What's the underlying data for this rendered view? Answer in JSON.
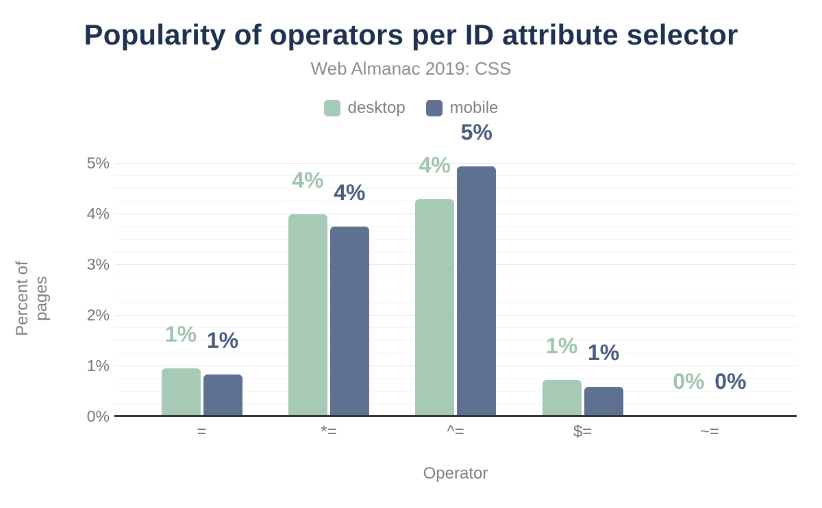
{
  "chart_data": {
    "type": "bar",
    "title": "Popularity of operators per ID attribute selector",
    "subtitle": "Web Almanac 2019: CSS",
    "categories": [
      "=",
      "*=",
      "^=",
      "$=",
      "~="
    ],
    "series": [
      {
        "name": "desktop",
        "values": [
          0.95,
          3.99,
          4.28,
          0.72,
          0.01
        ],
        "labels": [
          "1%",
          "4%",
          "4%",
          "1%",
          "0%"
        ],
        "color": "#a6cab5",
        "label_color": "#9fc5ad"
      },
      {
        "name": "mobile",
        "values": [
          0.82,
          3.74,
          4.93,
          0.58,
          0.01
        ],
        "labels": [
          "1%",
          "4%",
          "5%",
          "1%",
          "0%"
        ],
        "color": "#5e7191",
        "label_color": "#4a5c7f"
      }
    ],
    "xlabel": "Operator",
    "ylabel": "Percent of pages",
    "ylim": [
      0,
      5
    ],
    "yticks": [
      "0%",
      "1%",
      "2%",
      "3%",
      "4%",
      "5%"
    ],
    "minor_grid_step_pct": 0.25,
    "legend_position": "top",
    "grid": "horizontal"
  },
  "colors": {
    "title": "#1e3151",
    "subtitle": "#8b8e90",
    "legend_text": "#7f8285",
    "axis_tick_text": "#757575",
    "axis_title_text": "#7d8082",
    "baseline": "#323232",
    "gridline_major": "#e7e7e7",
    "gridline_minor": "#f4f4f4",
    "background": "#ffffff"
  }
}
